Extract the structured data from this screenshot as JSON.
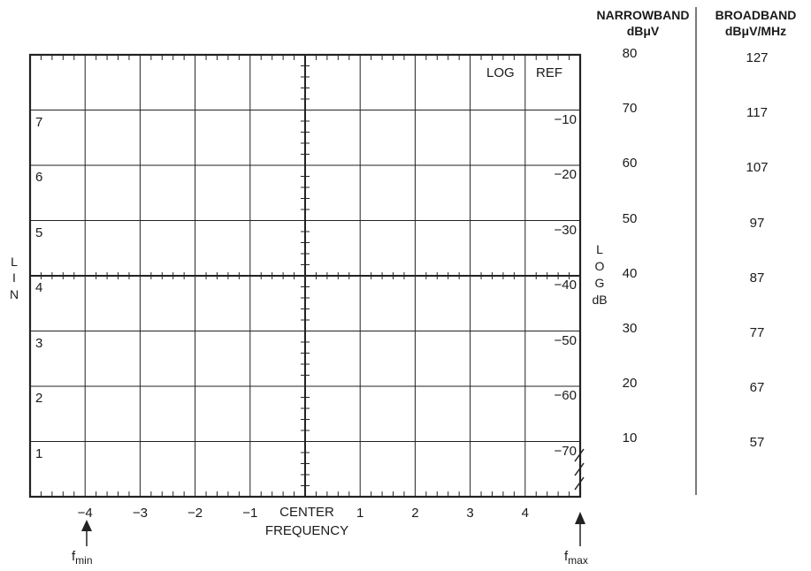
{
  "headers": {
    "narrowband": "NARROWBAND",
    "narrowband_unit": "dBμV",
    "broadband": "BROADBAND",
    "broadband_unit": "dBμV/MHz"
  },
  "narrowband_values": [
    "80",
    "70",
    "60",
    "50",
    "40",
    "30",
    "20",
    "10"
  ],
  "broadband_values": [
    "127",
    "117",
    "107",
    "97",
    "87",
    "77",
    "67",
    "57"
  ],
  "screen_labels": {
    "log": "LOG",
    "ref": "REF"
  },
  "lin_scale": [
    "7",
    "6",
    "5",
    "4",
    "3",
    "2",
    "1"
  ],
  "log_scale": [
    "−10",
    "−20",
    "−30",
    "−40",
    "−50",
    "−60",
    "−70"
  ],
  "lin_axis_label": [
    "L",
    "I",
    "N"
  ],
  "log_axis_label": [
    "L",
    "O",
    "G",
    "dB"
  ],
  "x_ticks_left": [
    "−4",
    "−3",
    "−2",
    "−1"
  ],
  "x_center": [
    "CENTER",
    "FREQUENCY"
  ],
  "x_ticks_right": [
    "1",
    "2",
    "3",
    "4"
  ],
  "fmin": {
    "main": "f",
    "sub": "min"
  },
  "fmax": {
    "main": "f",
    "sub": "max"
  }
}
